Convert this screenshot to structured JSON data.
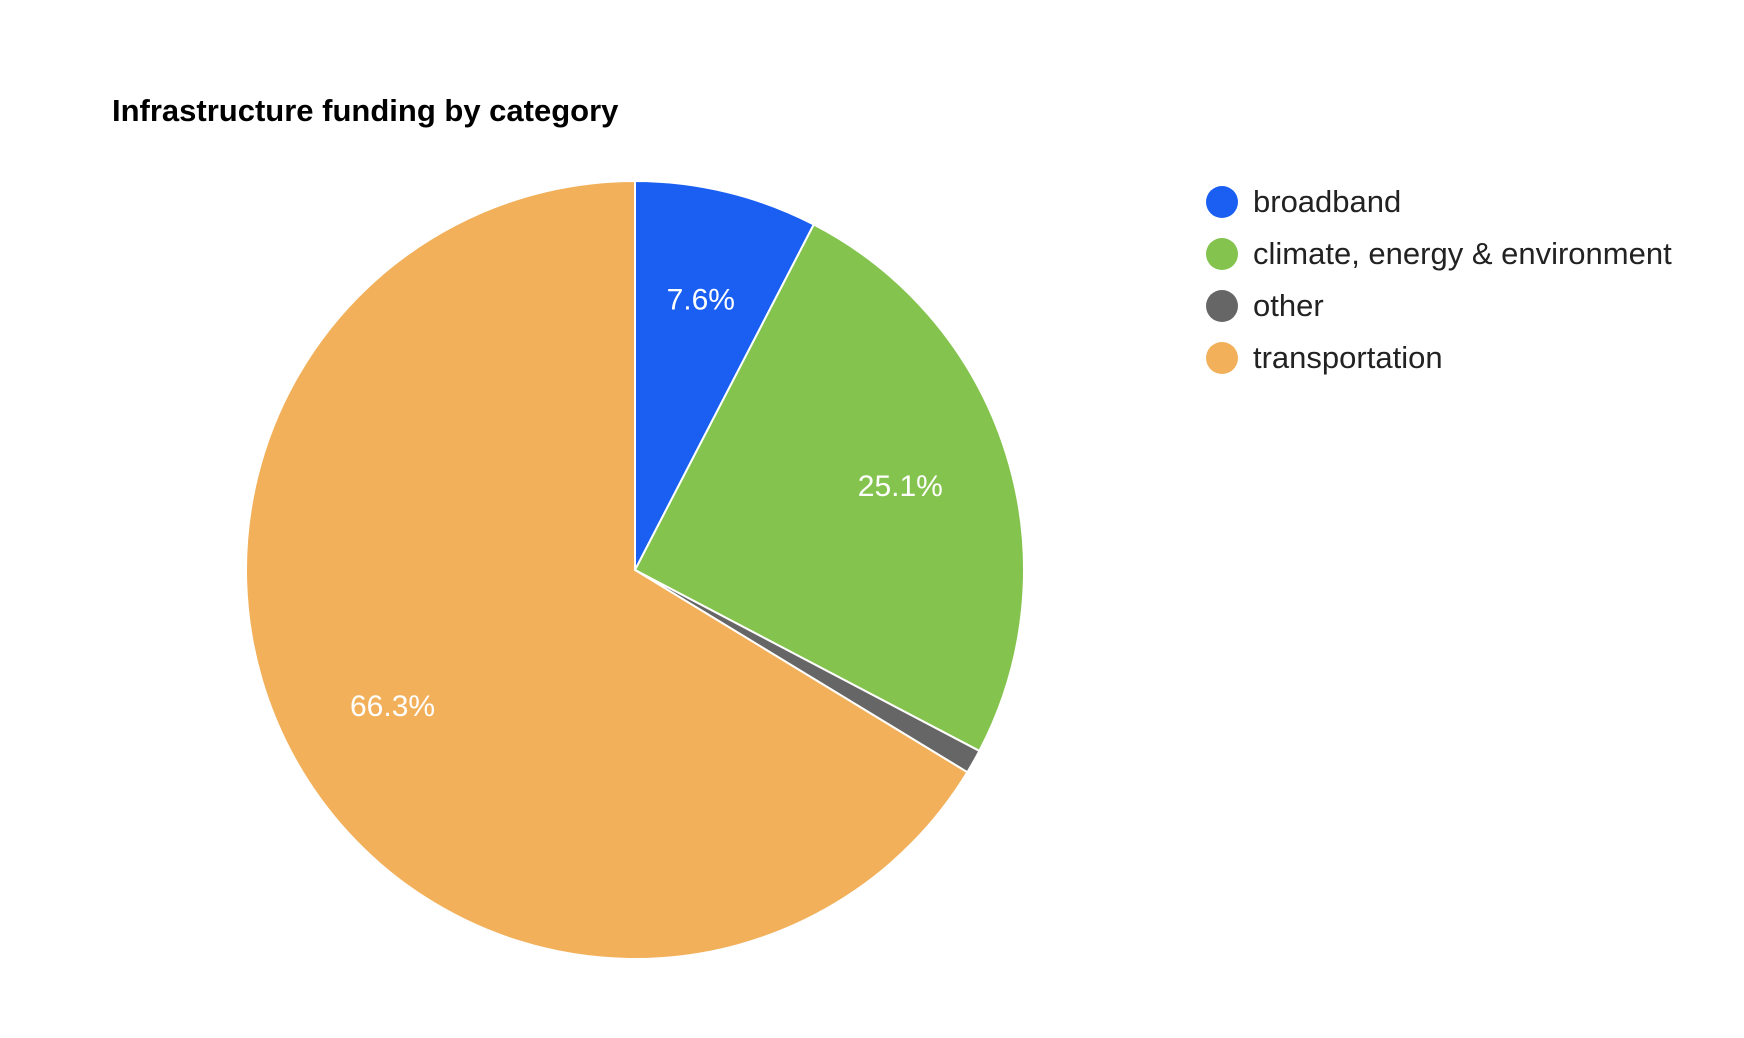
{
  "chart_data": {
    "type": "pie",
    "title": "Infrastructure funding by category",
    "categories": [
      "broadband",
      "climate, energy & environment",
      "other",
      "transportation"
    ],
    "values": [
      7.6,
      25.1,
      1.0,
      66.3
    ],
    "labels": [
      "7.6%",
      "25.1%",
      "",
      "66.3%"
    ],
    "colors": [
      "#1a5ff2",
      "#84c44e",
      "#666666",
      "#f2b05a"
    ],
    "start_angle_deg": 0,
    "direction": "clockwise",
    "legend_position": "right",
    "legend": [
      {
        "label": "broadband",
        "color": "#1a5ff2"
      },
      {
        "label": "climate, energy & environment",
        "color": "#84c44e"
      },
      {
        "label": "other",
        "color": "#666666"
      },
      {
        "label": "transportation",
        "color": "#f2b05a"
      }
    ]
  }
}
